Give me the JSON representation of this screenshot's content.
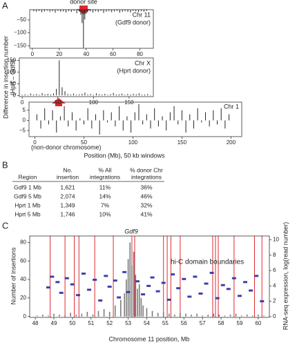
{
  "panel_labels": [
    "A",
    "B",
    "C"
  ],
  "chart_data": [
    {
      "type": "bar",
      "annotation": "donor site",
      "label": [
        "Chr 11",
        "(Gdf9 donor)"
      ],
      "xlim": [
        -2,
        90
      ],
      "xticks": [
        0,
        20,
        40,
        60,
        80
      ],
      "ylim": [
        -160,
        -10
      ],
      "yticks": [
        {
          "value": -50,
          "label": "−50"
        },
        {
          "value": -100,
          "label": "−100"
        },
        {
          "value": -150,
          "label": "−150"
        }
      ],
      "series": [
        {
          "color": "#222222",
          "x": [
            1,
            3,
            5,
            7,
            9,
            11,
            13,
            15,
            17,
            19,
            21,
            23,
            25,
            27,
            29,
            31,
            33,
            35,
            36,
            37,
            38,
            39,
            40,
            41,
            43,
            45,
            47,
            49,
            51,
            53,
            55,
            57,
            59,
            61,
            63,
            65,
            67,
            69,
            71,
            73,
            75,
            77,
            79,
            81,
            83,
            85
          ],
          "values": [
            -16,
            -18,
            -15,
            -20,
            -17,
            -14,
            -19,
            -16,
            -22,
            -15,
            -18,
            -17,
            -21,
            -16,
            -19,
            -15,
            -24,
            -18,
            -30,
            -62,
            -158,
            -48,
            -26,
            -20,
            -17,
            -21,
            -16,
            -19,
            -15,
            -23,
            -18,
            -16,
            -20,
            -17,
            -15,
            -22,
            -18,
            -16,
            -19,
            -21,
            -15,
            -17,
            -20,
            -16,
            -18,
            -15
          ]
        }
      ]
    },
    {
      "type": "bar",
      "label": [
        "Chr X",
        "(Hprt donor)"
      ],
      "ylabel": [
        "Difference in insertion number",
        "(Hprt – Gdf9)"
      ],
      "xlim": [
        -4,
        184
      ],
      "xticks": [
        0,
        50,
        100,
        150
      ],
      "ylim": [
        -5,
        160
      ],
      "yticks": [
        0,
        50,
        100,
        150
      ],
      "series": [
        {
          "color": "#222222",
          "x": [
            0,
            4,
            8,
            12,
            16,
            20,
            24,
            28,
            32,
            36,
            40,
            44,
            48,
            52,
            56,
            60,
            64,
            68,
            72,
            76,
            80,
            84,
            88,
            92,
            96,
            100,
            104,
            108,
            112,
            116,
            120,
            124,
            128,
            132,
            136,
            140,
            144,
            148,
            152,
            156,
            160,
            164,
            168,
            172,
            176,
            180
          ],
          "values": [
            3,
            5,
            2,
            8,
            4,
            6,
            3,
            10,
            5,
            7,
            4,
            9,
            28,
            150,
            35,
            18,
            6,
            4,
            8,
            3,
            5,
            7,
            12,
            4,
            6,
            3,
            9,
            5,
            4,
            7,
            3,
            6,
            11,
            4,
            5,
            8,
            3,
            6,
            4,
            7,
            5,
            9,
            3,
            4,
            6,
            2
          ]
        }
      ]
    },
    {
      "type": "bar",
      "label": [
        "Chr 1"
      ],
      "note": "(non-donor chromosome)",
      "xlabel": "Position (Mb), 50 kb windows",
      "xlim": [
        -6,
        211
      ],
      "xticks": [
        0,
        50,
        100,
        150,
        200
      ],
      "ylim": [
        -8,
        9
      ],
      "yticks": [
        {
          "value": -5,
          "label": "−5"
        },
        0,
        5
      ],
      "series": [
        {
          "color": "#222222",
          "x": [
            2,
            6,
            10,
            14,
            18,
            22,
            26,
            30,
            34,
            38,
            42,
            46,
            50,
            54,
            58,
            62,
            66,
            70,
            74,
            78,
            82,
            86,
            90,
            94,
            98,
            102,
            106,
            110,
            114,
            118,
            122,
            126,
            130,
            134,
            138,
            142,
            146,
            150,
            154,
            158,
            162,
            166,
            170,
            174,
            178,
            182,
            186,
            190,
            194,
            198
          ],
          "values": [
            3,
            -4,
            6,
            -2,
            5,
            -6,
            2,
            7,
            -3,
            4,
            -5,
            1,
            -2,
            6,
            -4,
            3,
            -7,
            5,
            -1,
            4,
            -3,
            7,
            -5,
            2,
            -6,
            4,
            8,
            -2,
            3,
            -4,
            6,
            -3,
            2,
            -5,
            4,
            7,
            -2,
            5,
            -6,
            3,
            -4,
            6,
            -1,
            4,
            -3,
            5,
            -2,
            6,
            -4,
            3
          ]
        }
      ]
    },
    {
      "type": "bar",
      "title": "Gdf9",
      "xlabel": "Chromosome 11 position, Mb",
      "ylabel": "Number of insertions",
      "y2label": "RNA-seq expression, log(read number)",
      "xlim": [
        47.7,
        60.6
      ],
      "xticks": [
        48,
        49,
        50,
        51,
        52,
        53,
        54,
        55,
        56,
        57,
        58,
        59,
        60
      ],
      "ylim": [
        -1,
        87
      ],
      "yticks": [
        0,
        20,
        40,
        60,
        80
      ],
      "y2lim": [
        -0.1,
        10.5
      ],
      "y2ticks": [
        0,
        2,
        4,
        6,
        8,
        10
      ],
      "y2color": "#5a4fb0",
      "boundaries": {
        "label": "hi-C domain boundaries",
        "color": "#e0282e",
        "x": [
          48.8,
          49.6,
          50.1,
          50.35,
          51.2,
          52.2,
          53.2,
          53.35,
          54.9,
          55.1,
          55.3,
          55.8,
          57.55,
          57.7,
          57.85,
          58.7,
          59.8,
          60.2
        ]
      },
      "series": [
        {
          "color": "#7a7a7a",
          "x": [
            48.1,
            48.4,
            48.7,
            49.0,
            49.3,
            49.6,
            49.9,
            50.2,
            50.5,
            50.8,
            51.1,
            51.4,
            51.7,
            52.0,
            52.3,
            52.6,
            52.8,
            52.9,
            53.0,
            53.1,
            53.2,
            53.3,
            53.4,
            53.5,
            53.6,
            53.7,
            53.8,
            54.0,
            54.3,
            54.6,
            54.9,
            55.2,
            55.5,
            55.8,
            56.1,
            56.4,
            56.7,
            57.0,
            57.3,
            57.6,
            57.9,
            58.2,
            58.5,
            58.8,
            59.1,
            59.4,
            59.7,
            60.0,
            60.3
          ],
          "values": [
            1,
            2,
            1,
            3,
            2,
            1,
            4,
            2,
            3,
            5,
            2,
            6,
            8,
            5,
            12,
            18,
            25,
            40,
            62,
            80,
            55,
            70,
            45,
            30,
            35,
            20,
            12,
            9,
            6,
            4,
            5,
            3,
            2,
            4,
            3,
            2,
            3,
            1,
            2,
            3,
            2,
            1,
            2,
            3,
            1,
            2,
            1,
            2,
            1
          ]
        },
        {
          "color": "#3b3fa8",
          "axis": "y2",
          "x": [
            48.7,
            48.9,
            49.2,
            49.4,
            49.7,
            50.0,
            50.3,
            50.6,
            50.9,
            51.2,
            51.5,
            51.8,
            52.0,
            52.3,
            52.5,
            52.8,
            53.0,
            53.5,
            53.8,
            54.1,
            54.3,
            54.6,
            54.9,
            55.2,
            55.4,
            55.7,
            56.0,
            56.3,
            56.6,
            56.9,
            57.2,
            57.5,
            57.8,
            58.1,
            58.4,
            58.7,
            59.0,
            59.3,
            59.6,
            59.9,
            60.2
          ],
          "values": [
            3.8,
            5.2,
            4.5,
            3.1,
            5.0,
            4.2,
            2.8,
            5.6,
            3.5,
            4.8,
            2.1,
            5.3,
            3.9,
            4.7,
            2.5,
            5.8,
            3.2,
            4.6,
            2.9,
            4.0,
            5.1,
            3.3,
            4.4,
            2.2,
            5.5,
            3.7,
            4.9,
            2.6,
            5.2,
            3.0,
            4.3,
            5.7,
            2.4,
            4.1,
            3.6,
            5.0,
            2.7,
            4.5,
            3.4,
            5.3,
            2.0
          ]
        }
      ]
    }
  ],
  "table": {
    "header": [
      [
        "Region"
      ],
      [
        "No.",
        "insertion"
      ],
      [
        "% All",
        "integrations"
      ],
      [
        "% donor Chr",
        "integrations"
      ]
    ],
    "rows": [
      [
        "Gdf9 1 Mb",
        "1,621",
        "11%",
        "36%"
      ],
      [
        "Gdf9 5 Mb",
        "2,074",
        "14%",
        "46%"
      ],
      [
        "Hprt 1 Mb",
        "1,349",
        "7%",
        "32%"
      ],
      [
        "Hprt 5 Mb",
        "1,746",
        "10%",
        "41%"
      ]
    ]
  }
}
